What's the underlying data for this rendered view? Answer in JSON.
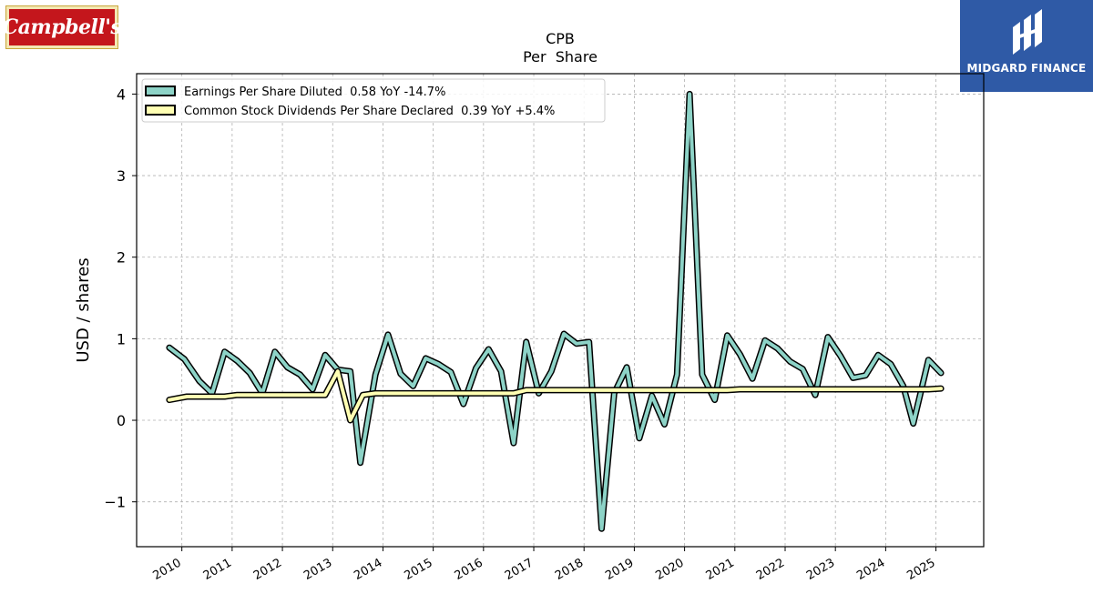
{
  "logos": {
    "left_text": "Campbell's",
    "right_text": "MIDGARD FINANCE"
  },
  "chart_data": {
    "type": "line",
    "title": "CPB",
    "subtitle": "Per  Share",
    "ylabel": "USD / shares",
    "xlabel": "",
    "ylim": [
      -1.55,
      4.25
    ],
    "xlim": [
      2009.1,
      2025.95
    ],
    "yticks": [
      -1,
      0,
      1,
      2,
      3,
      4
    ],
    "ytick_labels": [
      "−1",
      "0",
      "1",
      "2",
      "3",
      "4"
    ],
    "xticks": [
      2010,
      2011,
      2012,
      2013,
      2014,
      2015,
      2016,
      2017,
      2018,
      2019,
      2020,
      2021,
      2022,
      2023,
      2024,
      2025
    ],
    "xtick_labels": [
      "2010",
      "2011",
      "2012",
      "2013",
      "2014",
      "2015",
      "2016",
      "2017",
      "2018",
      "2019",
      "2020",
      "2021",
      "2022",
      "2023",
      "2024",
      "2025"
    ],
    "grid": true,
    "legend_position": "top-left",
    "series": [
      {
        "name": "Earnings Per Share Diluted  0.58 YoY -14.7%",
        "color": "#8dd3c7",
        "points": [
          [
            2009.75,
            0.89
          ],
          [
            2010.05,
            0.75
          ],
          [
            2010.35,
            0.48
          ],
          [
            2010.6,
            0.33
          ],
          [
            2010.85,
            0.84
          ],
          [
            2011.1,
            0.73
          ],
          [
            2011.35,
            0.58
          ],
          [
            2011.6,
            0.33
          ],
          [
            2011.85,
            0.84
          ],
          [
            2012.1,
            0.65
          ],
          [
            2012.35,
            0.56
          ],
          [
            2012.6,
            0.38
          ],
          [
            2012.85,
            0.8
          ],
          [
            2013.1,
            0.62
          ],
          [
            2013.35,
            0.6
          ],
          [
            2013.55,
            -0.52
          ],
          [
            2013.85,
            0.56
          ],
          [
            2014.1,
            1.05
          ],
          [
            2014.35,
            0.57
          ],
          [
            2014.6,
            0.42
          ],
          [
            2014.85,
            0.76
          ],
          [
            2015.1,
            0.69
          ],
          [
            2015.35,
            0.59
          ],
          [
            2015.6,
            0.2
          ],
          [
            2015.85,
            0.64
          ],
          [
            2016.1,
            0.87
          ],
          [
            2016.35,
            0.6
          ],
          [
            2016.6,
            -0.28
          ],
          [
            2016.85,
            0.96
          ],
          [
            2017.1,
            0.33
          ],
          [
            2017.35,
            0.6
          ],
          [
            2017.6,
            1.06
          ],
          [
            2017.85,
            0.94
          ],
          [
            2018.1,
            0.96
          ],
          [
            2018.35,
            -1.33
          ],
          [
            2018.6,
            0.33
          ],
          [
            2018.85,
            0.65
          ],
          [
            2019.1,
            -0.22
          ],
          [
            2019.35,
            0.3
          ],
          [
            2019.6,
            -0.05
          ],
          [
            2019.85,
            0.56
          ],
          [
            2020.1,
            4.0
          ],
          [
            2020.35,
            0.56
          ],
          [
            2020.6,
            0.25
          ],
          [
            2020.85,
            1.04
          ],
          [
            2021.1,
            0.81
          ],
          [
            2021.35,
            0.51
          ],
          [
            2021.6,
            0.98
          ],
          [
            2021.85,
            0.88
          ],
          [
            2022.1,
            0.72
          ],
          [
            2022.35,
            0.63
          ],
          [
            2022.6,
            0.31
          ],
          [
            2022.85,
            1.02
          ],
          [
            2023.1,
            0.79
          ],
          [
            2023.35,
            0.52
          ],
          [
            2023.6,
            0.55
          ],
          [
            2023.85,
            0.8
          ],
          [
            2024.1,
            0.69
          ],
          [
            2024.35,
            0.42
          ],
          [
            2024.55,
            -0.04
          ],
          [
            2024.85,
            0.74
          ],
          [
            2025.1,
            0.58
          ]
        ]
      },
      {
        "name": "Common Stock Dividends Per Share Declared  0.39 YoY +5.4%",
        "color": "#ffffb3",
        "points": [
          [
            2009.75,
            0.25
          ],
          [
            2010.1,
            0.29
          ],
          [
            2010.85,
            0.29
          ],
          [
            2011.1,
            0.31
          ],
          [
            2012.85,
            0.31
          ],
          [
            2013.1,
            0.6
          ],
          [
            2013.35,
            0.0
          ],
          [
            2013.6,
            0.31
          ],
          [
            2013.85,
            0.33
          ],
          [
            2016.6,
            0.33
          ],
          [
            2016.85,
            0.37
          ],
          [
            2020.85,
            0.37
          ],
          [
            2021.1,
            0.38
          ],
          [
            2024.85,
            0.38
          ],
          [
            2025.1,
            0.39
          ]
        ]
      }
    ]
  }
}
